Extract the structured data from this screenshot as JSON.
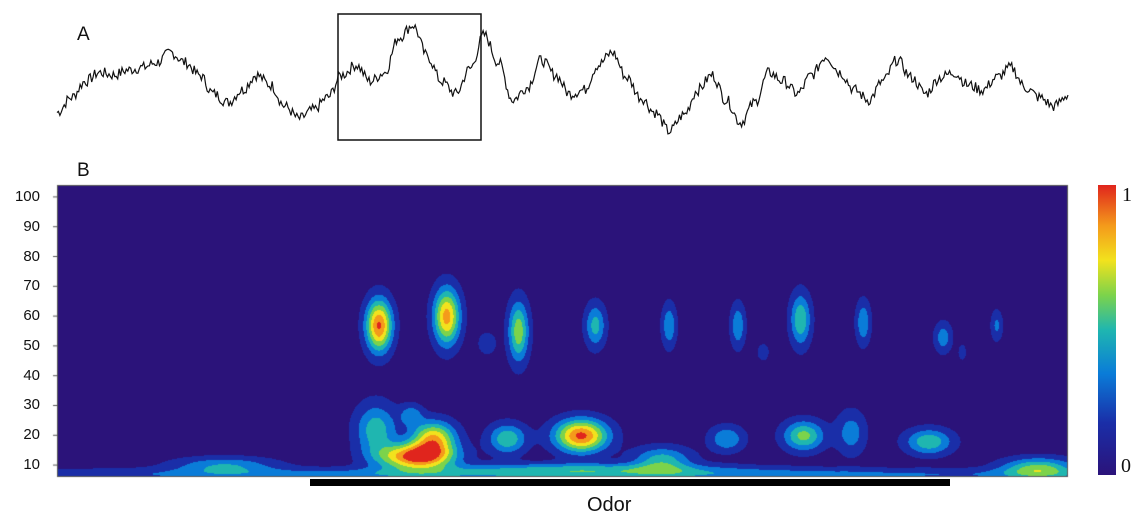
{
  "panels": {
    "a_label": "A",
    "b_label": "B"
  },
  "colorbar": {
    "max_label": "1",
    "min_label": "0",
    "colors": [
      "#2b137a",
      "#1a2ea8",
      "#0a7cd8",
      "#1fb6b0",
      "#7cd34b",
      "#f2e21d",
      "#f49a1b",
      "#e0251d"
    ]
  },
  "stimulus": {
    "label": "Odor"
  },
  "chart_data": [
    {
      "type": "line",
      "panel": "A",
      "title": "",
      "xlabel": "",
      "ylabel": "",
      "description_of_series": "raw signal trace",
      "series": [
        {
          "values": [
            0.3,
            0.42,
            0.55,
            0.62,
            0.6,
            0.64,
            0.66,
            0.7,
            0.78,
            0.7,
            0.6,
            0.45,
            0.38,
            0.48,
            0.6,
            0.52,
            0.35,
            0.25,
            0.32,
            0.42,
            0.6,
            0.68,
            0.55,
            0.62,
            0.9,
            1.0,
            0.75,
            0.55,
            0.45,
            0.65,
            0.92,
            0.7,
            0.4,
            0.5,
            0.72,
            0.6,
            0.45,
            0.48,
            0.68,
            0.78,
            0.58,
            0.42,
            0.3,
            0.15,
            0.28,
            0.48,
            0.6,
            0.4,
            0.22,
            0.38,
            0.62,
            0.55,
            0.45,
            0.6,
            0.75,
            0.62,
            0.48,
            0.4,
            0.55,
            0.72,
            0.58,
            0.45,
            0.58,
            0.62,
            0.52,
            0.48,
            0.58,
            0.66,
            0.5,
            0.42,
            0.35,
            0.44
          ]
        }
      ]
    },
    {
      "type": "heatmap",
      "panel": "B",
      "title": "",
      "xlabel": "",
      "ylabel": "",
      "y_ticks": [
        100,
        90,
        80,
        70,
        60,
        50,
        40,
        30,
        20,
        10
      ],
      "ylim": [
        6,
        104
      ],
      "xlim": [
        0,
        1
      ],
      "zlim": [
        0,
        1
      ],
      "colormap": "jet",
      "stimulus_interval": [
        0.248,
        0.875
      ],
      "blobs": [
        {
          "x": 0.318,
          "y": 57,
          "sx": 0.009,
          "sy": 6,
          "z": 0.95
        },
        {
          "x": 0.385,
          "y": 60,
          "sx": 0.009,
          "sy": 6.5,
          "z": 0.85
        },
        {
          "x": 0.456,
          "y": 55,
          "sx": 0.007,
          "sy": 7,
          "z": 0.6
        },
        {
          "x": 0.532,
          "y": 57,
          "sx": 0.007,
          "sy": 5,
          "z": 0.42
        },
        {
          "x": 0.605,
          "y": 57,
          "sx": 0.005,
          "sy": 5,
          "z": 0.35
        },
        {
          "x": 0.673,
          "y": 57,
          "sx": 0.005,
          "sy": 5,
          "z": 0.35
        },
        {
          "x": 0.735,
          "y": 59,
          "sx": 0.007,
          "sy": 6,
          "z": 0.5
        },
        {
          "x": 0.797,
          "y": 58,
          "sx": 0.005,
          "sy": 5,
          "z": 0.35
        },
        {
          "x": 0.876,
          "y": 53,
          "sx": 0.006,
          "sy": 3.5,
          "z": 0.3
        },
        {
          "x": 0.929,
          "y": 57,
          "sx": 0.004,
          "sy": 3.5,
          "z": 0.25
        },
        {
          "x": 0.425,
          "y": 51,
          "sx": 0.006,
          "sy": 2.5,
          "z": 0.2
        },
        {
          "x": 0.698,
          "y": 48,
          "sx": 0.004,
          "sy": 2,
          "z": 0.18
        },
        {
          "x": 0.895,
          "y": 48,
          "sx": 0.003,
          "sy": 2,
          "z": 0.15
        },
        {
          "x": 0.355,
          "y": 13,
          "sx": 0.025,
          "sy": 3,
          "z": 1.0
        },
        {
          "x": 0.372,
          "y": 19,
          "sx": 0.015,
          "sy": 4,
          "z": 0.78
        },
        {
          "x": 0.315,
          "y": 22,
          "sx": 0.014,
          "sy": 6,
          "z": 0.45
        },
        {
          "x": 0.445,
          "y": 19,
          "sx": 0.013,
          "sy": 3.5,
          "z": 0.48
        },
        {
          "x": 0.518,
          "y": 20,
          "sx": 0.018,
          "sy": 3.8,
          "z": 0.97
        },
        {
          "x": 0.598,
          "y": 12,
          "sx": 0.02,
          "sy": 3,
          "z": 0.42
        },
        {
          "x": 0.662,
          "y": 19,
          "sx": 0.012,
          "sy": 3,
          "z": 0.35
        },
        {
          "x": 0.738,
          "y": 20,
          "sx": 0.014,
          "sy": 3.5,
          "z": 0.55
        },
        {
          "x": 0.785,
          "y": 21,
          "sx": 0.01,
          "sy": 5,
          "z": 0.3
        },
        {
          "x": 0.862,
          "y": 18,
          "sx": 0.016,
          "sy": 3,
          "z": 0.48
        },
        {
          "x": 0.35,
          "y": 27,
          "sx": 0.008,
          "sy": 2.5,
          "z": 0.3
        },
        {
          "x": 0.165,
          "y": 10,
          "sx": 0.035,
          "sy": 2,
          "z": 0.35
        },
        {
          "x": 0.52,
          "y": 9,
          "sx": 0.1,
          "sy": 1.5,
          "z": 0.32
        },
        {
          "x": 0.97,
          "y": 9,
          "sx": 0.025,
          "sy": 2.5,
          "z": 0.55
        },
        {
          "x": 0.5,
          "y": 7,
          "sx": 0.45,
          "sy": 1.5,
          "z": 0.3
        }
      ]
    }
  ]
}
